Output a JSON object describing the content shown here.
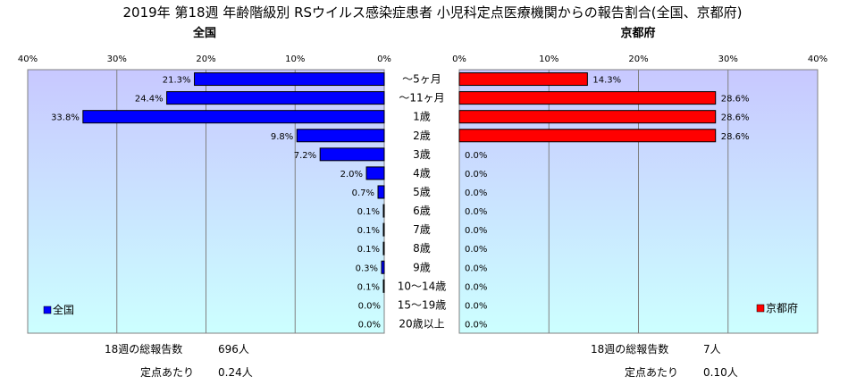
{
  "title": "2019年 第18週 年齢階級別 RSウイルス感染症患者 小児科定点医療機関からの報告割合(全国、京都府)",
  "chart_data": [
    {
      "type": "bar",
      "orientation": "horizontal",
      "title": "全国",
      "xlim": [
        0,
        40
      ],
      "x_direction": "reversed",
      "tick_labels": [
        "40%",
        "30%",
        "20%",
        "10%",
        "0%"
      ],
      "grid": true,
      "legend_position": "bottom-left",
      "color": "#0000ff",
      "categories": [
        "～5ヶ月",
        "～11ヶ月",
        "1歳",
        "2歳",
        "3歳",
        "4歳",
        "5歳",
        "6歳",
        "7歳",
        "8歳",
        "9歳",
        "10～14歳",
        "15～19歳",
        "20歳以上"
      ],
      "series": [
        {
          "name": "全国",
          "values": [
            21.3,
            24.4,
            33.8,
            9.8,
            7.2,
            2.0,
            0.7,
            0.1,
            0.1,
            0.1,
            0.3,
            0.1,
            0.0,
            0.0
          ],
          "labels": [
            "21.3%",
            "24.4%",
            "33.8%",
            "9.8%",
            "7.2%",
            "2.0%",
            "0.7%",
            "0.1%",
            "0.1%",
            "0.1%",
            "0.3%",
            "0.1%",
            "0.0%",
            "0.0%"
          ]
        }
      ]
    },
    {
      "type": "bar",
      "orientation": "horizontal",
      "title": "京都府",
      "xlim": [
        0,
        40
      ],
      "tick_labels": [
        "0%",
        "10%",
        "20%",
        "30%",
        "40%"
      ],
      "grid": true,
      "legend_position": "bottom-right",
      "color": "#ff0000",
      "categories": [
        "～5ヶ月",
        "～11ヶ月",
        "1歳",
        "2歳",
        "3歳",
        "4歳",
        "5歳",
        "6歳",
        "7歳",
        "8歳",
        "9歳",
        "10～14歳",
        "15～19歳",
        "20歳以上"
      ],
      "series": [
        {
          "name": "京都府",
          "values": [
            14.3,
            28.6,
            28.6,
            28.6,
            0.0,
            0.0,
            0.0,
            0.0,
            0.0,
            0.0,
            0.0,
            0.0,
            0.0,
            0.0
          ],
          "labels": [
            "14.3%",
            "28.6%",
            "28.6%",
            "28.6%",
            "0.0%",
            "0.0%",
            "0.0%",
            "0.0%",
            "0.0%",
            "0.0%",
            "0.0%",
            "0.0%",
            "0.0%",
            "0.0%"
          ]
        }
      ]
    }
  ],
  "footer": {
    "left": {
      "total_label": "18週の総報告数",
      "total_value": "696人",
      "per_label": "定点あたり",
      "per_value": "0.24人"
    },
    "right": {
      "total_label": "18週の総報告数",
      "total_value": "7人",
      "per_label": "定点あたり",
      "per_value": "0.10人"
    }
  }
}
